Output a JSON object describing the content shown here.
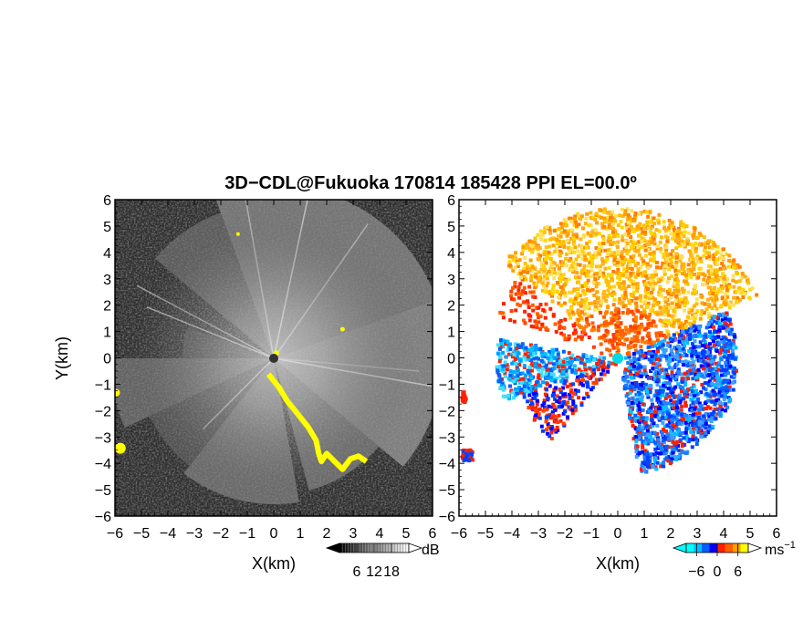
{
  "chart_data": [
    {
      "type": "heatmap",
      "panel": "reflectivity",
      "title": "3D−CDL@Fukuoka 170814 185428 PPI EL=00.0º",
      "xlabel": "X(km)",
      "ylabel": "Y(km)",
      "xlim": [
        -6,
        6
      ],
      "ylim": [
        -6,
        6
      ],
      "xticks": [
        "−6",
        "−5",
        "−4",
        "−3",
        "−2",
        "−1",
        "0",
        "1",
        "2",
        "3",
        "4",
        "5",
        "6"
      ],
      "yticks": [
        "−6",
        "−5",
        "−4",
        "−3",
        "−2",
        "−1",
        "0",
        "1",
        "2",
        "3",
        "4",
        "5",
        "6"
      ],
      "colorbar": {
        "unit": "dB",
        "ticks": [
          "6",
          "12",
          "18"
        ],
        "values": [
          6,
          12,
          18
        ],
        "range": [
          0,
          24
        ],
        "colormap": "grayscale"
      },
      "highlight_color": "#ffff00"
    },
    {
      "type": "heatmap",
      "panel": "doppler-velocity",
      "xlabel": "X(km)",
      "xlim": [
        -6,
        6
      ],
      "ylim": [
        -6,
        6
      ],
      "xticks": [
        "−6",
        "−5",
        "−4",
        "−3",
        "−2",
        "−1",
        "0",
        "1",
        "2",
        "3",
        "4",
        "5",
        "6"
      ],
      "yticks": [
        "−6",
        "−5",
        "−4",
        "−3",
        "−2",
        "−1",
        "0",
        "1",
        "2",
        "3",
        "4",
        "5",
        "6"
      ],
      "colorbar": {
        "unit": "ms",
        "unit_exp": "−1",
        "ticks": [
          "−6",
          "0",
          "6"
        ],
        "values": [
          -6,
          0,
          6
        ],
        "range": [
          -9,
          9
        ],
        "colors": [
          "#00ffff",
          "#00c0ff",
          "#0060ff",
          "#0000ff",
          "#ff2000",
          "#ff6000",
          "#ffa000",
          "#ffff00"
        ]
      }
    }
  ]
}
